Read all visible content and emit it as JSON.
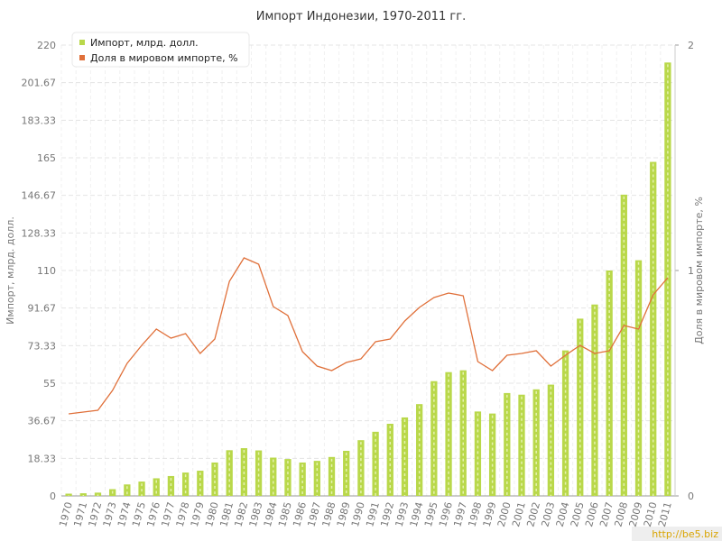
{
  "chart_data": {
    "type": "bar_line",
    "title": "Импорт Индонезии, 1970-2011 гг.",
    "y_label": "Импорт, млрд. долл.",
    "y2_label": "Доля в мировом импорте, %",
    "watermark": "http://be5.biz",
    "categories": [
      "1970",
      "1971",
      "1972",
      "1973",
      "1974",
      "1975",
      "1976",
      "1977",
      "1978",
      "1979",
      "1980",
      "1981",
      "1982",
      "1983",
      "1984",
      "1985",
      "1986",
      "1987",
      "1988",
      "1989",
      "1990",
      "1991",
      "1992",
      "1993",
      "1994",
      "1995",
      "1996",
      "1997",
      "1998",
      "1999",
      "2000",
      "2001",
      "2002",
      "2003",
      "2004",
      "2005",
      "2006",
      "2007",
      "2008",
      "2009",
      "2010",
      "2011"
    ],
    "series": [
      {
        "name": "Импорт, млрд. долл.",
        "color": "#b9d84a",
        "kind": "bar",
        "values": [
          1.1,
          1.3,
          1.6,
          3.3,
          5.6,
          7,
          8.6,
          9.7,
          11.4,
          12.3,
          16.3,
          22.3,
          23.3,
          22.2,
          18.7,
          18,
          16.3,
          17.1,
          19,
          22,
          27.2,
          31.3,
          35.2,
          38.3,
          44.8,
          56,
          60.4,
          61.3,
          41.2,
          40.2,
          50.2,
          49.4,
          52,
          54.3,
          71,
          86.5,
          93.4,
          110,
          147,
          115,
          163,
          211.5
        ]
      },
      {
        "name": "Доля в мировом импорте, %",
        "color": "#e0703a",
        "kind": "line",
        "axis": "y2",
        "values": [
          0.364,
          0.372,
          0.38,
          0.468,
          0.588,
          0.668,
          0.74,
          0.7,
          0.72,
          0.632,
          0.696,
          0.952,
          1.056,
          1.028,
          0.84,
          0.8,
          0.64,
          0.576,
          0.556,
          0.592,
          0.608,
          0.684,
          0.696,
          0.776,
          0.836,
          0.88,
          0.9,
          0.888,
          0.596,
          0.556,
          0.624,
          0.632,
          0.644,
          0.576,
          0.624,
          0.668,
          0.632,
          0.644,
          0.756,
          0.74,
          0.892,
          0.968
        ]
      }
    ],
    "ylim": [
      0,
      220
    ],
    "yticks": [
      0,
      18.33,
      36.67,
      55,
      73.33,
      91.67,
      110,
      128.33,
      146.67,
      165,
      183.33,
      201.67,
      220
    ],
    "y2lim": [
      0,
      2
    ],
    "y2ticks": [
      0,
      1,
      2
    ],
    "grid": true,
    "legend": "top-left"
  }
}
